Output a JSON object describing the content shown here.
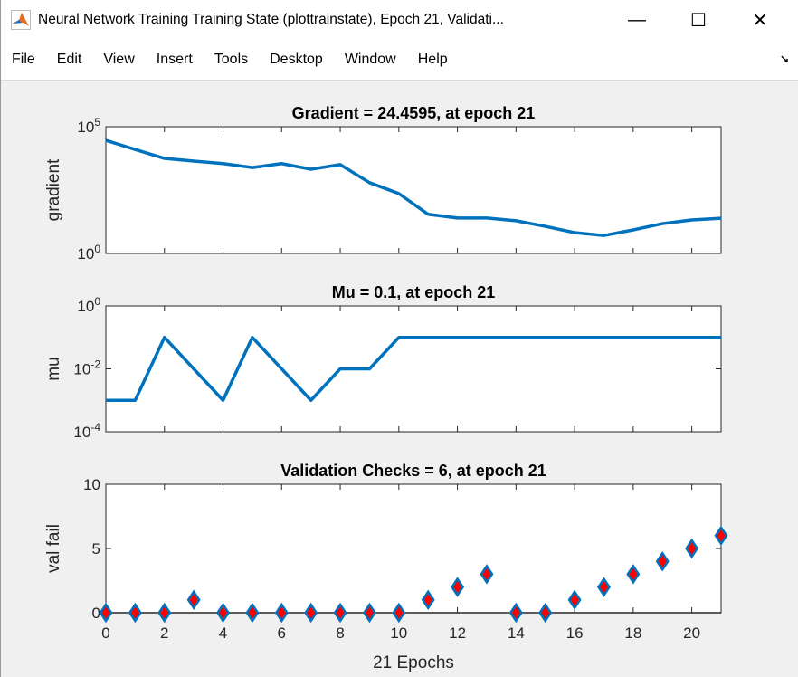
{
  "window": {
    "title": "Neural Network Training Training State (plottrainstate), Epoch 21, Validati...",
    "minimize_label": "—",
    "maximize_label": "☐",
    "close_label": "✕"
  },
  "menu": {
    "items": [
      {
        "label": "File"
      },
      {
        "label": "Edit"
      },
      {
        "label": "View"
      },
      {
        "label": "Insert"
      },
      {
        "label": "Tools"
      },
      {
        "label": "Desktop"
      },
      {
        "label": "Window"
      },
      {
        "label": "Help"
      }
    ],
    "dock_icon": "dock-arrow-icon"
  },
  "colors": {
    "line": "#0072bd",
    "marker_fill": "#ff0000",
    "marker_edge": "#0072bd",
    "axes_bg": "#ffffff",
    "figure_bg": "#f0f0f0"
  },
  "chart_data": [
    {
      "type": "line",
      "title": "Gradient = 24.4595, at epoch 21",
      "ylabel": "gradient",
      "yscale": "log",
      "ylim": [
        1,
        100000
      ],
      "xlim": [
        0,
        21
      ],
      "yticks": [
        {
          "base": "10",
          "exp": "0",
          "value": 1
        },
        {
          "base": "10",
          "exp": "5",
          "value": 100000
        }
      ],
      "x": [
        0,
        1,
        2,
        3,
        4,
        5,
        6,
        7,
        8,
        9,
        10,
        11,
        12,
        13,
        14,
        15,
        16,
        17,
        18,
        19,
        20,
        21
      ],
      "values": [
        29000,
        12600,
        5600,
        4400,
        3500,
        2450,
        3500,
        2100,
        3200,
        620,
        230,
        35,
        25,
        25,
        19.5,
        11.7,
        6.6,
        5.1,
        8.5,
        15,
        21,
        24.4595
      ]
    },
    {
      "type": "line",
      "title": "Mu = 0.1, at epoch 21",
      "ylabel": "mu",
      "yscale": "log",
      "ylim": [
        0.0001,
        1
      ],
      "xlim": [
        0,
        21
      ],
      "yticks": [
        {
          "base": "10",
          "exp": "-4",
          "value": 0.0001
        },
        {
          "base": "10",
          "exp": "-2",
          "value": 0.01
        },
        {
          "base": "10",
          "exp": "0",
          "value": 1
        }
      ],
      "x": [
        0,
        1,
        2,
        3,
        4,
        5,
        6,
        7,
        8,
        9,
        10,
        11,
        12,
        13,
        14,
        15,
        16,
        17,
        18,
        19,
        20,
        21
      ],
      "values": [
        0.001,
        0.001,
        0.1,
        0.01,
        0.001,
        0.1,
        0.01,
        0.001,
        0.01,
        0.01,
        0.1,
        0.1,
        0.1,
        0.1,
        0.1,
        0.1,
        0.1,
        0.1,
        0.1,
        0.1,
        0.1,
        0.1
      ]
    },
    {
      "type": "scatter",
      "title": "Validation Checks = 6, at epoch 21",
      "ylabel": "val fail",
      "xlabel": "21 Epochs",
      "ylim": [
        0,
        10
      ],
      "xlim": [
        0,
        21
      ],
      "yticks": [
        {
          "label": "0",
          "value": 0
        },
        {
          "label": "5",
          "value": 5
        },
        {
          "label": "10",
          "value": 10
        }
      ],
      "xticks": [
        "0",
        "2",
        "4",
        "6",
        "8",
        "10",
        "12",
        "14",
        "16",
        "18",
        "20"
      ],
      "x": [
        0,
        1,
        2,
        3,
        4,
        5,
        6,
        7,
        8,
        9,
        10,
        11,
        12,
        13,
        14,
        15,
        16,
        17,
        18,
        19,
        20,
        21
      ],
      "values": [
        0,
        0,
        0,
        1,
        0,
        0,
        0,
        0,
        0,
        0,
        0,
        1,
        2,
        3,
        0,
        0,
        1,
        2,
        3,
        4,
        5,
        6
      ],
      "marker": "diamond"
    }
  ]
}
